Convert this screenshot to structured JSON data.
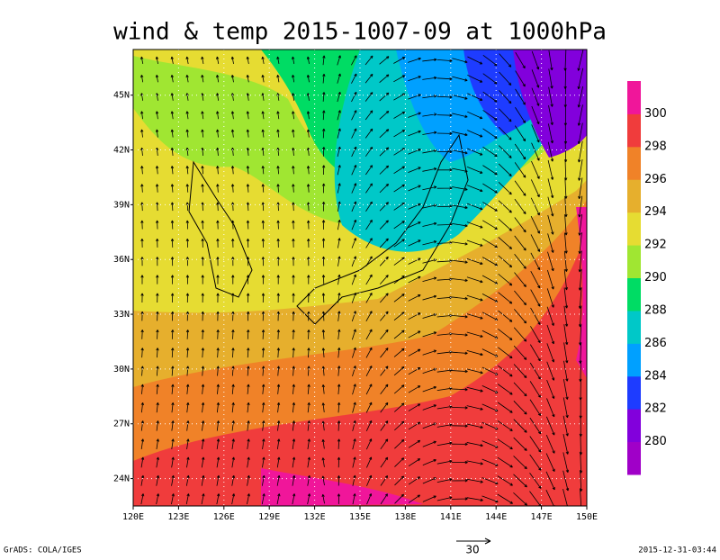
{
  "title": "wind & temp 2015-1007-09 at 1000hPa",
  "map": {
    "lonlim": [
      120,
      150
    ],
    "latlim": [
      22.5,
      47.5
    ],
    "lon_ticks": [
      {
        "value": 120,
        "label": "120E"
      },
      {
        "value": 123,
        "label": "123E"
      },
      {
        "value": 126,
        "label": "126E"
      },
      {
        "value": 129,
        "label": "129E"
      },
      {
        "value": 132,
        "label": "132E"
      },
      {
        "value": 135,
        "label": "135E"
      },
      {
        "value": 138,
        "label": "138E"
      },
      {
        "value": 141,
        "label": "141E"
      },
      {
        "value": 144,
        "label": "144E"
      },
      {
        "value": 147,
        "label": "147E"
      },
      {
        "value": 150,
        "label": "150E"
      }
    ],
    "lat_ticks": [
      {
        "value": 24,
        "label": "24N"
      },
      {
        "value": 27,
        "label": "27N"
      },
      {
        "value": 30,
        "label": "30N"
      },
      {
        "value": 33,
        "label": "33N"
      },
      {
        "value": 36,
        "label": "36N"
      },
      {
        "value": 39,
        "label": "39N"
      },
      {
        "value": 42,
        "label": "42N"
      },
      {
        "value": 45,
        "label": "45N"
      }
    ]
  },
  "colorbar": {
    "labels": [
      280,
      282,
      284,
      286,
      288,
      290,
      292,
      294,
      296,
      298,
      300
    ],
    "colors": [
      "#a000c8",
      "#8200dc",
      "#1e3cff",
      "#00a0ff",
      "#00c8c8",
      "#00dc64",
      "#a0e632",
      "#e6dc32",
      "#e6af2d",
      "#f08228",
      "#f03c3c",
      "#f0169a"
    ]
  },
  "vector_scale": 30,
  "footer_left": "GrADS: COLA/IGES",
  "footer_right": "2015-12-31-03:44"
}
